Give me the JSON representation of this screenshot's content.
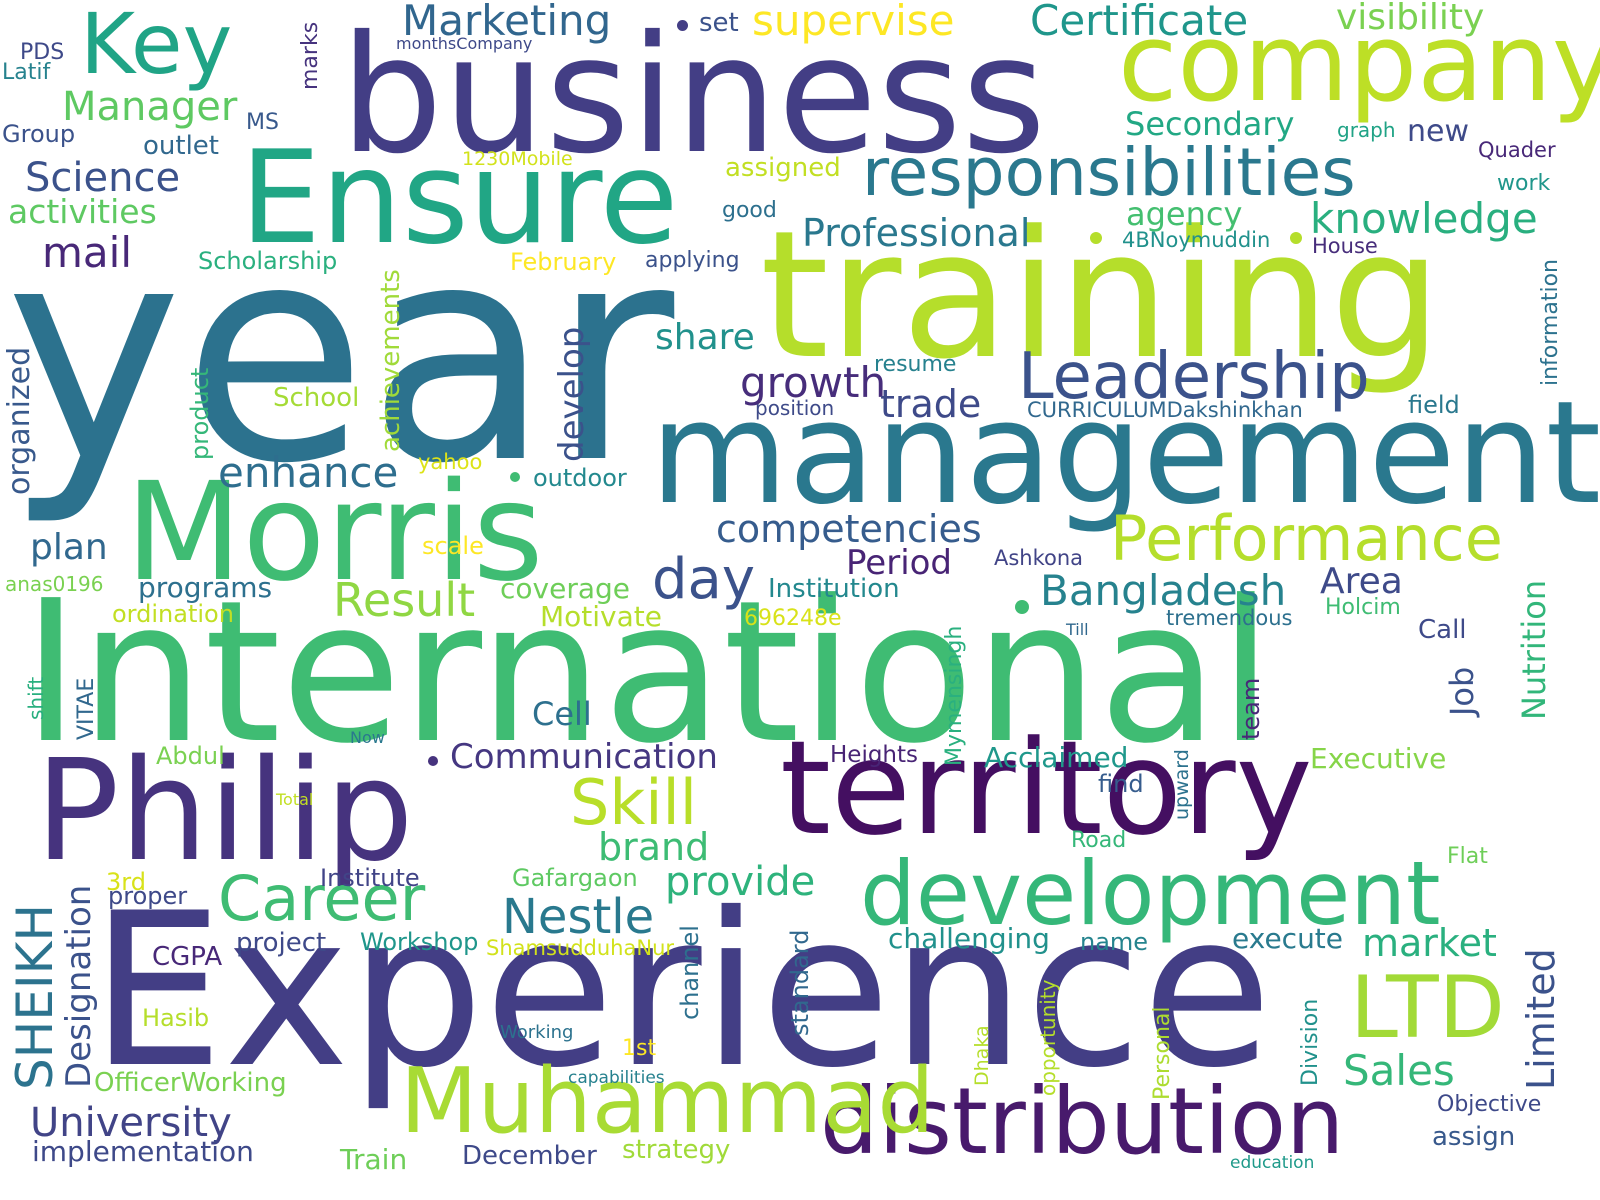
{
  "cloud": {
    "background": "#ffffff",
    "words": [
      {
        "text": "year",
        "color": "#2c728e"
      },
      {
        "text": "International",
        "color": "#3fbc73"
      },
      {
        "text": "Experience",
        "color": "#433e85"
      },
      {
        "text": "business",
        "color": "#433e85"
      },
      {
        "text": "training",
        "color": "#b5de2b"
      },
      {
        "text": "management",
        "color": "#2a788e"
      },
      {
        "text": "territory",
        "color": "#440f61"
      },
      {
        "text": "Philip",
        "color": "#46337e"
      },
      {
        "text": "Morris",
        "color": "#3fbc73"
      },
      {
        "text": "Ensure",
        "color": "#21a685"
      },
      {
        "text": "company",
        "color": "#bddf26"
      },
      {
        "text": "development",
        "color": "#35b779"
      },
      {
        "text": "distribution",
        "color": "#481a6c"
      },
      {
        "text": "Muhammad",
        "color": "#a8db34"
      },
      {
        "text": "Key",
        "color": "#20a486"
      },
      {
        "text": "responsibilities",
        "color": "#2a788e"
      },
      {
        "text": "Leadership",
        "color": "#3b528b"
      },
      {
        "text": "Performance",
        "color": "#b5de2b"
      },
      {
        "text": "LTD",
        "color": "#a2da37"
      },
      {
        "text": "Skill",
        "color": "#b8de29"
      },
      {
        "text": "Career",
        "color": "#3fbc73"
      },
      {
        "text": "Bangladesh",
        "color": "#26828e"
      },
      {
        "text": "knowledge",
        "color": "#29af7f"
      },
      {
        "text": "day",
        "color": "#3b528b"
      },
      {
        "text": "Nestle",
        "color": "#29798e"
      },
      {
        "text": "Result",
        "color": "#90d743"
      },
      {
        "text": "Marketing",
        "color": "#31668e"
      },
      {
        "text": "Certificate",
        "color": "#1f968b"
      },
      {
        "text": "supervise",
        "color": "#fde725"
      },
      {
        "text": "visibility",
        "color": "#7ad151"
      },
      {
        "text": "Manager",
        "color": "#5ec962"
      },
      {
        "text": "Science",
        "color": "#3b528b"
      },
      {
        "text": "activities",
        "color": "#5ec962"
      },
      {
        "text": "mail",
        "color": "#482878"
      },
      {
        "text": "Professional",
        "color": "#2a788e"
      },
      {
        "text": "Secondary",
        "color": "#22a884"
      },
      {
        "text": "agency",
        "color": "#44bf70"
      },
      {
        "text": "growth",
        "color": "#472d7b"
      },
      {
        "text": "trade",
        "color": "#3e4a89"
      },
      {
        "text": "enhance",
        "color": "#2e6e8e"
      },
      {
        "text": "competencies",
        "color": "#365c8d"
      },
      {
        "text": "Period",
        "color": "#482475"
      },
      {
        "text": "share",
        "color": "#21918c"
      },
      {
        "text": "develop",
        "color": "#3b528b"
      },
      {
        "text": "plan",
        "color": "#31688e"
      },
      {
        "text": "programs",
        "color": "#2d708e"
      },
      {
        "text": "University",
        "color": "#414487"
      },
      {
        "text": "implementation",
        "color": "#3e4989"
      },
      {
        "text": "Communication",
        "color": "#453781"
      },
      {
        "text": "provide",
        "color": "#2eb37c"
      },
      {
        "text": "brand",
        "color": "#3dbc74"
      },
      {
        "text": "market",
        "color": "#2ab07f"
      },
      {
        "text": "Sales",
        "color": "#35b779"
      },
      {
        "text": "Area",
        "color": "#3e4a89"
      },
      {
        "text": "Limited",
        "color": "#3b528b"
      },
      {
        "text": "Job",
        "color": "#3b528b"
      },
      {
        "text": "Nutrition",
        "color": "#32b67a"
      },
      {
        "text": "SHEIKH",
        "color": "#2c738e"
      },
      {
        "text": "Designation",
        "color": "#3b528b"
      },
      {
        "text": "Cell",
        "color": "#2d708e"
      },
      {
        "text": "Executive",
        "color": "#86d549"
      },
      {
        "text": "Acclaimed",
        "color": "#1f988b"
      },
      {
        "text": "challenging",
        "color": "#21918c"
      },
      {
        "text": "execute",
        "color": "#297a8e"
      },
      {
        "text": "Institution",
        "color": "#23888e"
      },
      {
        "text": "coverage",
        "color": "#6ece58"
      },
      {
        "text": "Motivate",
        "color": "#b5de2b"
      },
      {
        "text": "ordination",
        "color": "#c2df23"
      },
      {
        "text": "Institute",
        "color": "#414487"
      },
      {
        "text": "Gafargaon",
        "color": "#5ec962"
      },
      {
        "text": "Workshop",
        "color": "#1f968b"
      },
      {
        "text": "project",
        "color": "#3e4989"
      },
      {
        "text": "CGPA",
        "color": "#482878"
      },
      {
        "text": "Hasib",
        "color": "#b5de2b"
      },
      {
        "text": "OfficerWorking",
        "color": "#7ad151"
      },
      {
        "text": "Train",
        "color": "#6ece58"
      },
      {
        "text": "December",
        "color": "#3e4989"
      },
      {
        "text": "strategy",
        "color": "#a0da39"
      },
      {
        "text": "1st",
        "color": "#fde725"
      },
      {
        "text": "capabilities",
        "color": "#26818e"
      },
      {
        "text": "Working",
        "color": "#2c728e"
      },
      {
        "text": "ShamsudduhaNur",
        "color": "#d2e21b"
      },
      {
        "text": "name",
        "color": "#25848e"
      },
      {
        "text": "Objective",
        "color": "#3e4989"
      },
      {
        "text": "assign",
        "color": "#38598c"
      },
      {
        "text": "education",
        "color": "#1f9a8a"
      },
      {
        "text": "Call",
        "color": "#3e4a89"
      },
      {
        "text": "tremendous",
        "color": "#2d708e"
      },
      {
        "text": "Holcim",
        "color": "#3fbc73"
      },
      {
        "text": "Till",
        "color": "#31688e"
      },
      {
        "text": "Ashkona",
        "color": "#414487"
      },
      {
        "text": "696248e",
        "color": "#d8e219"
      },
      {
        "text": "Heights",
        "color": "#482475"
      },
      {
        "text": "find",
        "color": "#365c8d"
      },
      {
        "text": "Road",
        "color": "#35b779"
      },
      {
        "text": "Flat",
        "color": "#6ece58"
      },
      {
        "text": "Now",
        "color": "#2a788e"
      },
      {
        "text": "Abdul",
        "color": "#7ad151"
      },
      {
        "text": "Total",
        "color": "#c2df23"
      },
      {
        "text": "3rd",
        "color": "#d8e219"
      },
      {
        "text": "proper",
        "color": "#3e4989"
      },
      {
        "text": "outdoor",
        "color": "#23898e"
      },
      {
        "text": "scale",
        "color": "#fde725"
      },
      {
        "text": "yahoo",
        "color": "#dde318"
      },
      {
        "text": "School",
        "color": "#a5db36"
      },
      {
        "text": "position",
        "color": "#3e4a89"
      },
      {
        "text": "resume",
        "color": "#26818e"
      },
      {
        "text": "CURRICULUMDakshinkhan",
        "color": "#31688e"
      },
      {
        "text": "field",
        "color": "#2a788e"
      },
      {
        "text": "information",
        "color": "#2c728e"
      },
      {
        "text": "House",
        "color": "#472d7b"
      },
      {
        "text": "4BNoymuddin",
        "color": "#21918c"
      },
      {
        "text": "February",
        "color": "#fde725"
      },
      {
        "text": "applying",
        "color": "#3b528b"
      },
      {
        "text": "good",
        "color": "#2d708e"
      },
      {
        "text": "assigned",
        "color": "#c2df23"
      },
      {
        "text": "1230Mobile",
        "color": "#d2e21b"
      },
      {
        "text": "outlet",
        "color": "#31688e"
      },
      {
        "text": "Scholarship",
        "color": "#2ab07f"
      },
      {
        "text": "MS",
        "color": "#38598c"
      },
      {
        "text": "Group",
        "color": "#3b528b"
      },
      {
        "text": "Latif",
        "color": "#26828e"
      },
      {
        "text": "PDS",
        "color": "#3e4989"
      },
      {
        "text": "monthsCompany",
        "color": "#3e4989"
      },
      {
        "text": "set",
        "color": "#3b528b"
      },
      {
        "text": "marks",
        "color": "#46337e"
      },
      {
        "text": "graph",
        "color": "#20a386"
      },
      {
        "text": "new",
        "color": "#3e4a89"
      },
      {
        "text": "Quader",
        "color": "#482878"
      },
      {
        "text": "work",
        "color": "#1f968b"
      },
      {
        "text": "anas0196",
        "color": "#7ad151"
      },
      {
        "text": "organized",
        "color": "#38598c"
      },
      {
        "text": "product",
        "color": "#35b779"
      },
      {
        "text": "achievements",
        "color": "#a0da39"
      },
      {
        "text": "shift",
        "color": "#29af7f"
      },
      {
        "text": "VITAE",
        "color": "#31688e"
      },
      {
        "text": "Mymensingh",
        "color": "#2ab07f"
      },
      {
        "text": "upward",
        "color": "#2c728e"
      },
      {
        "text": "team",
        "color": "#482878"
      },
      {
        "text": "channel",
        "color": "#2d708e"
      },
      {
        "text": "standard",
        "color": "#31688e"
      },
      {
        "text": "opportunity",
        "color": "#b5de2b"
      },
      {
        "text": "Dhaka",
        "color": "#b5de2b"
      },
      {
        "text": "Personal",
        "color": "#addc30"
      },
      {
        "text": "Division",
        "color": "#21918c"
      }
    ]
  }
}
